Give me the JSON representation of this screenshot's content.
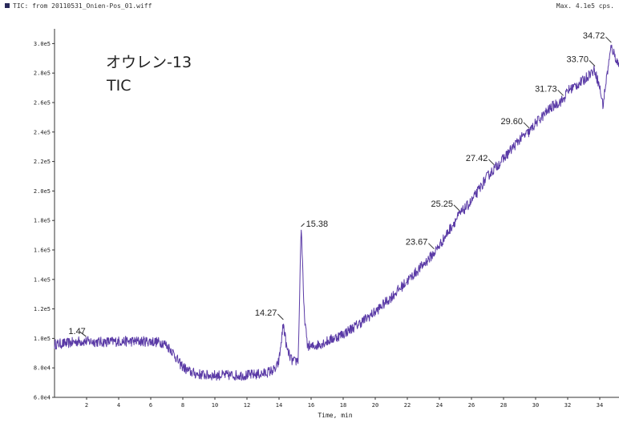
{
  "header": {
    "title": "TIC: from 20110531_Onien-Pos_01.wiff",
    "max": "Max. 4.1e5 cps."
  },
  "chart_data": {
    "type": "line",
    "title": "オウレン-13",
    "subtitle": "TIC",
    "xlabel": "Time, min",
    "ylabel": "",
    "xlim": [
      0,
      35.2
    ],
    "ylim": [
      60000.0,
      310000.0
    ],
    "grid": false,
    "legend": "none",
    "x_ticks": [
      2,
      4,
      6,
      8,
      10,
      12,
      14,
      16,
      18,
      20,
      22,
      24,
      26,
      28,
      30,
      32,
      34
    ],
    "y_ticks": [
      {
        "value": 60000,
        "label": "6.0e4"
      },
      {
        "value": 80000,
        "label": "8.0e4"
      },
      {
        "value": 100000,
        "label": "1.0e5"
      },
      {
        "value": 120000,
        "label": "1.2e5"
      },
      {
        "value": 140000,
        "label": "1.4e5"
      },
      {
        "value": 160000,
        "label": "1.6e5"
      },
      {
        "value": 180000,
        "label": "1.8e5"
      },
      {
        "value": 200000,
        "label": "2.0e5"
      },
      {
        "value": 220000,
        "label": "2.2e5"
      },
      {
        "value": 240000,
        "label": "2.4e5"
      },
      {
        "value": 260000,
        "label": "2.6e5"
      },
      {
        "value": 280000,
        "label": "2.8e5"
      },
      {
        "value": 300000,
        "label": "3.0e5"
      }
    ],
    "series": [
      {
        "color": "#5a3aa6",
        "x": [
          0,
          1,
          1.47,
          2,
          3,
          4,
          5,
          6,
          6.8,
          7.3,
          7.8,
          8.3,
          8.8,
          9.5,
          10,
          11,
          12,
          13,
          13.8,
          14.0,
          14.27,
          14.5,
          14.8,
          15.0,
          15.2,
          15.38,
          15.55,
          15.75,
          16,
          17,
          18,
          19,
          20,
          21,
          22,
          23,
          23.67,
          24,
          25,
          25.25,
          26,
          27,
          27.42,
          28,
          29,
          29.6,
          30,
          31,
          31.73,
          32,
          33,
          33.4,
          33.7,
          34.0,
          34.2,
          34.4,
          34.72,
          35,
          35.2
        ],
        "y": [
          96000,
          97000,
          98000,
          98000,
          97500,
          98000,
          98000,
          98000,
          97000,
          92000,
          83000,
          78000,
          76000,
          75000,
          75000,
          75000,
          75000,
          76000,
          79000,
          85000,
          110000,
          92000,
          85000,
          84000,
          86000,
          178000,
          120000,
          96000,
          94000,
          98000,
          103000,
          110000,
          118000,
          128000,
          139000,
          150000,
          158000,
          163000,
          180000,
          184000,
          193000,
          210000,
          215000,
          222000,
          235000,
          240000,
          246000,
          257000,
          262000,
          268000,
          275000,
          280000,
          282000,
          270000,
          258000,
          275000,
          298000,
          290000,
          285000
        ]
      }
    ],
    "annotations": [
      {
        "x": 1.47,
        "y": 98000,
        "label": "1.47"
      },
      {
        "x": 14.27,
        "y": 110000,
        "label": "14.27"
      },
      {
        "x": 15.38,
        "y": 178000,
        "label": "15.38"
      },
      {
        "x": 23.67,
        "y": 158000,
        "label": "23.67"
      },
      {
        "x": 25.25,
        "y": 184000,
        "label": "25.25"
      },
      {
        "x": 27.42,
        "y": 215000,
        "label": "27.42"
      },
      {
        "x": 29.6,
        "y": 240000,
        "label": "29.60"
      },
      {
        "x": 31.73,
        "y": 262000,
        "label": "31.73"
      },
      {
        "x": 33.7,
        "y": 282000,
        "label": "33.70"
      },
      {
        "x": 34.72,
        "y": 298000,
        "label": "34.72"
      }
    ]
  }
}
